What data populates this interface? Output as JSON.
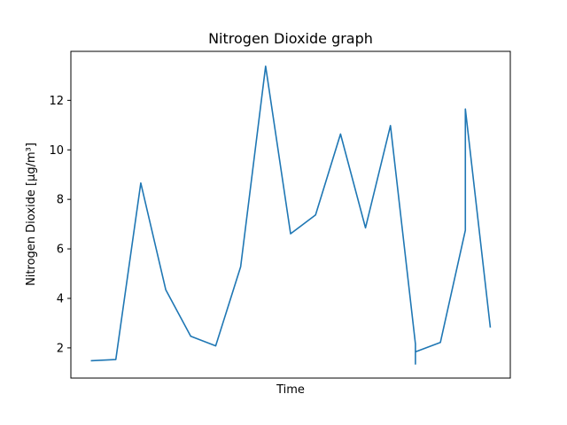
{
  "chart_data": {
    "type": "line",
    "title": "Nitrogen Dioxide graph",
    "xlabel": "Time",
    "ylabel": "Nitrogen Dioxide [µg/m³]",
    "ylim": [
      0.78,
      13.98
    ],
    "xticks": [],
    "yticks": [
      2,
      4,
      6,
      8,
      10,
      12
    ],
    "grid": false,
    "legend": "none",
    "series": [
      {
        "color": "#1f77b4",
        "x": [
          0,
          1,
          2,
          3,
          4,
          5,
          6,
          7,
          8,
          9,
          10,
          11,
          12,
          13,
          13,
          13,
          14,
          15,
          15,
          16
        ],
        "y": [
          1.48,
          1.53,
          8.66,
          4.35,
          2.47,
          2.08,
          5.28,
          13.38,
          6.61,
          7.37,
          10.64,
          6.85,
          10.98,
          2.16,
          1.35,
          1.84,
          2.22,
          6.75,
          11.65,
          2.82
        ]
      }
    ]
  }
}
